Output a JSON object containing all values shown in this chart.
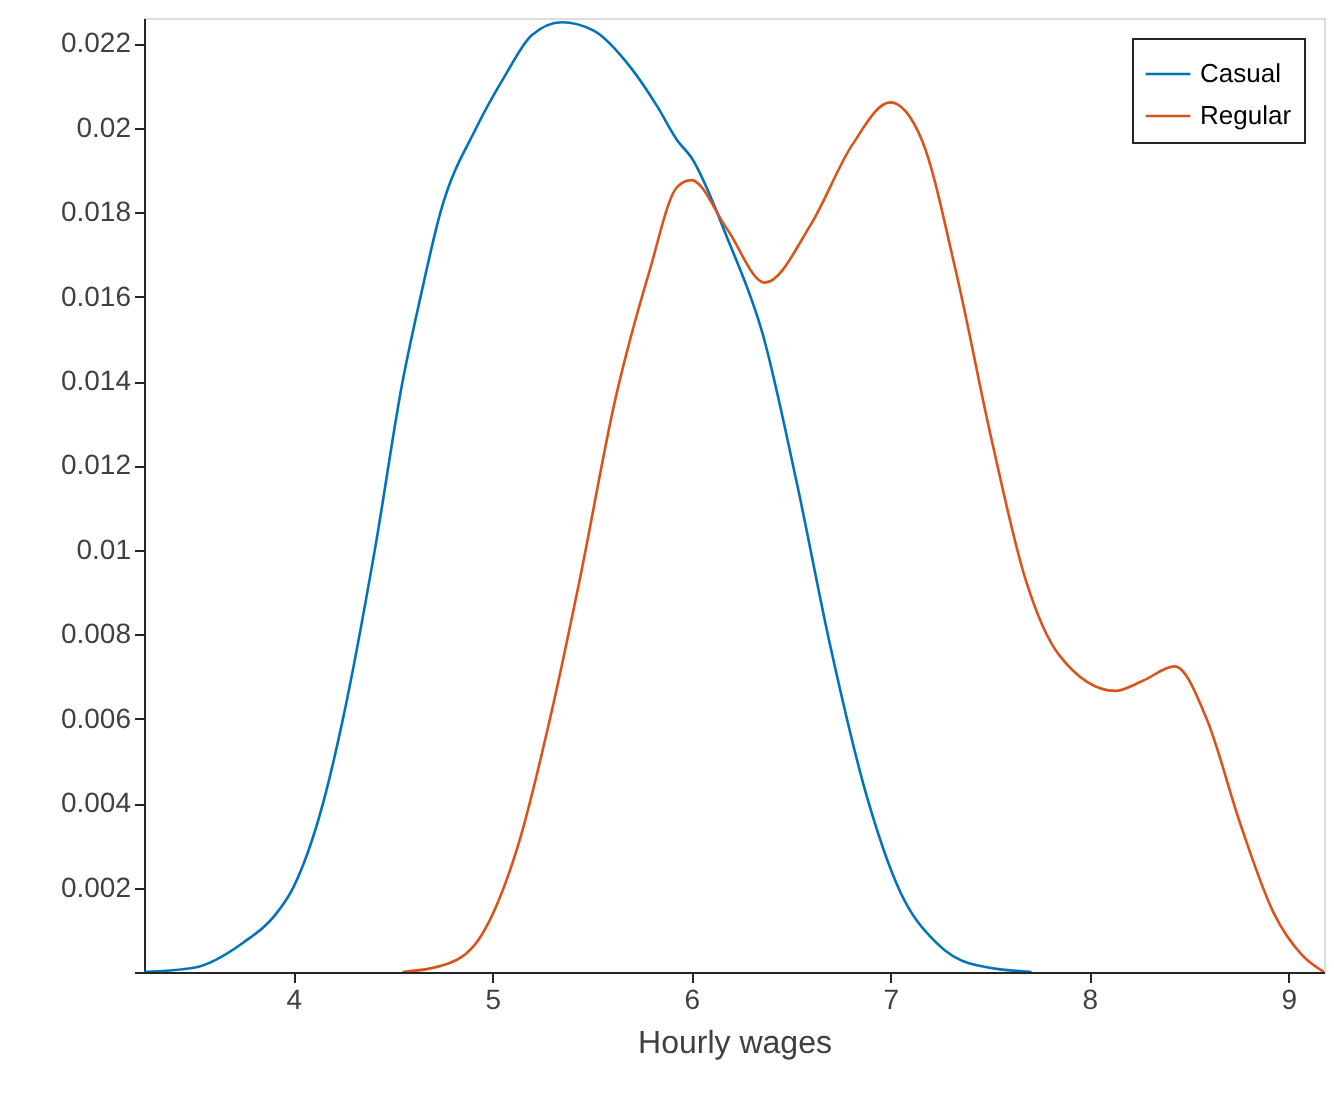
{
  "chart_data": {
    "type": "line",
    "xlabel": "Hourly wages",
    "xlim": [
      3.25,
      9.18
    ],
    "ylim": [
      0,
      0.0226
    ],
    "xticks": [
      4,
      5,
      6,
      7,
      8,
      9
    ],
    "yticks": [
      {
        "value": 0,
        "label": null
      },
      0.002,
      0.004,
      0.006,
      0.008,
      0.01,
      0.012,
      0.014,
      0.016,
      0.018,
      0.02,
      0.022
    ],
    "grid": false,
    "legend": "top right",
    "marker": "none",
    "line_style": "solid",
    "series": [
      {
        "name": "Casual",
        "color": "#0072bd",
        "x": [
          3.25,
          3.5,
          3.75,
          3.9,
          4.0,
          4.15,
          4.25,
          4.41,
          4.55,
          4.64,
          4.74,
          4.92,
          5.06,
          5.2,
          5.35,
          5.51,
          5.7,
          5.83,
          5.93,
          6.0,
          6.18,
          6.36,
          6.53,
          6.7,
          6.88,
          7.05,
          7.23,
          7.4,
          7.71
        ],
        "values": [
          0,
          0.0001,
          0.0007,
          0.0013,
          0.002,
          0.004,
          0.006,
          0.01,
          0.014,
          0.016,
          0.018,
          0.02,
          0.0212,
          0.0222,
          0.0225,
          0.0223,
          0.0214,
          0.0205,
          0.0197,
          0.0193,
          0.0174,
          0.0151,
          0.0116,
          0.0077,
          0.0042,
          0.0019,
          0.0007,
          0.0002,
          0
        ]
      },
      {
        "name": "Regular",
        "color": "#d95319",
        "x": [
          4.55,
          4.78,
          4.95,
          5.13,
          5.3,
          5.44,
          5.62,
          5.79,
          5.93,
          6.0,
          6.18,
          6.37,
          6.6,
          6.81,
          7.0,
          7.16,
          7.33,
          7.51,
          7.68,
          7.85,
          8.13,
          8.27,
          8.43,
          8.59,
          8.76,
          8.93,
          9.07,
          9.18
        ],
        "values": [
          0,
          0.0002,
          0.0009,
          0.003,
          0.0062,
          0.0093,
          0.0136,
          0.0166,
          0.0186,
          0.01876,
          0.0176,
          0.01633,
          0.0177,
          0.0196,
          0.0206,
          0.0197,
          0.0166,
          0.0126,
          0.0093,
          0.0075,
          0.00666,
          0.0069,
          0.00724,
          0.006,
          0.0035,
          0.00137,
          0.0004,
          0
        ]
      }
    ]
  }
}
